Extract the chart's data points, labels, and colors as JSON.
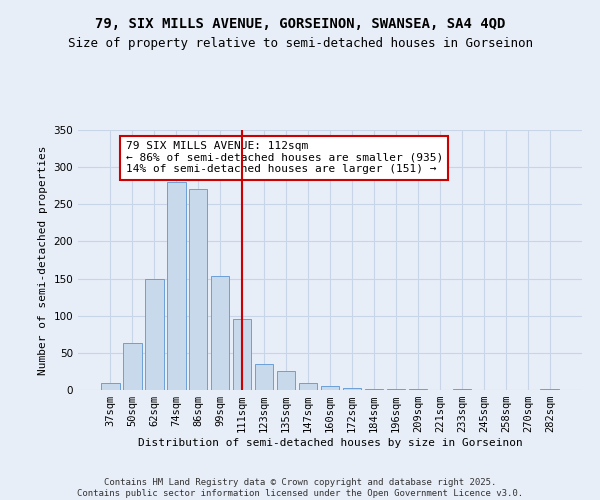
{
  "title_line1": "79, SIX MILLS AVENUE, GORSEINON, SWANSEA, SA4 4QD",
  "title_line2": "Size of property relative to semi-detached houses in Gorseinon",
  "xlabel": "Distribution of semi-detached houses by size in Gorseinon",
  "ylabel": "Number of semi-detached properties",
  "categories": [
    "37sqm",
    "50sqm",
    "62sqm",
    "74sqm",
    "86sqm",
    "99sqm",
    "111sqm",
    "123sqm",
    "135sqm",
    "147sqm",
    "160sqm",
    "172sqm",
    "184sqm",
    "196sqm",
    "209sqm",
    "221sqm",
    "233sqm",
    "245sqm",
    "258sqm",
    "270sqm",
    "282sqm"
  ],
  "values": [
    10,
    63,
    149,
    280,
    270,
    153,
    95,
    35,
    25,
    9,
    5,
    3,
    2,
    2,
    1,
    0,
    1,
    0,
    0,
    0,
    1
  ],
  "bar_color": "#c9d9ec",
  "bar_edge_color": "#6a9fd8",
  "vline_index": 6,
  "vline_color": "#cc0000",
  "annotation_line1": "79 SIX MILLS AVENUE: 112sqm",
  "annotation_line2": "← 86% of semi-detached houses are smaller (935)",
  "annotation_line3": "14% of semi-detached houses are larger (151) →",
  "annotation_box_color": "#ffffff",
  "annotation_box_edge_color": "#cc0000",
  "ylim": [
    0,
    350
  ],
  "yticks": [
    0,
    50,
    100,
    150,
    200,
    250,
    300,
    350
  ],
  "grid_color": "#c8d4e8",
  "background_color": "#e8eef8",
  "footnote": "Contains HM Land Registry data © Crown copyright and database right 2025.\nContains public sector information licensed under the Open Government Licence v3.0.",
  "title_fontsize": 10,
  "subtitle_fontsize": 9,
  "axis_label_fontsize": 8,
  "tick_fontsize": 7.5,
  "annotation_fontsize": 8,
  "footnote_fontsize": 6.5
}
